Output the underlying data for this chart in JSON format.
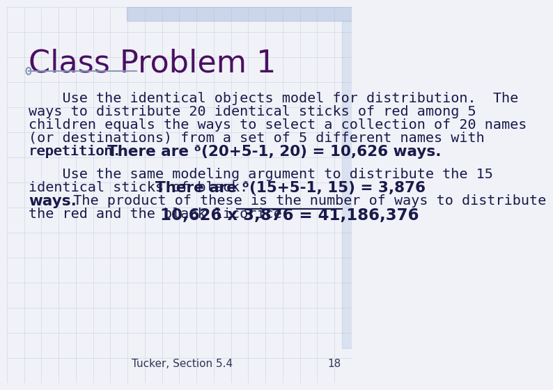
{
  "background_color": "#f0f2f8",
  "title": "Class Problem 1",
  "title_color": "#4a1060",
  "title_fontsize": 32,
  "title_font": "DejaVu Sans",
  "line_color": "#8899bb",
  "body_color": "#1a1a4a",
  "body_fontsize": 14.5,
  "bold_color": "#1a1a4a",
  "footer_text": "Tucker, Section 5.4",
  "footer_number": "18",
  "footer_fontsize": 11,
  "paragraph1_lines": [
    "    Use the identical objects model for distribution.  The",
    "ways to distribute 20 identical sticks of red among 5",
    "children equals the ways to select a collection of 20 names",
    "(or destinations) from a set of 5 different names with",
    "repetition."
  ],
  "p1_bold_text": "There are ᶞ(20+5-1, 20) = 10,626 ways.",
  "paragraph2_lines": [
    "    Use the same modeling argument to distribute the 15",
    "identical sticks of black."
  ],
  "p2_bold_inline": "There are ᶞ(15+5-1, 15) = 3,876",
  "p2_bold_cont": "ways.",
  "p2_regular_cont": "  The product of these is the number of ways to distribute",
  "p2_last_line": "the red and the black licorice.",
  "p2_final_bold": "10,626 x 3,876 = 41,186,376",
  "grid_color": "#c8d0e0",
  "top_bar_color": "#aabbdd"
}
